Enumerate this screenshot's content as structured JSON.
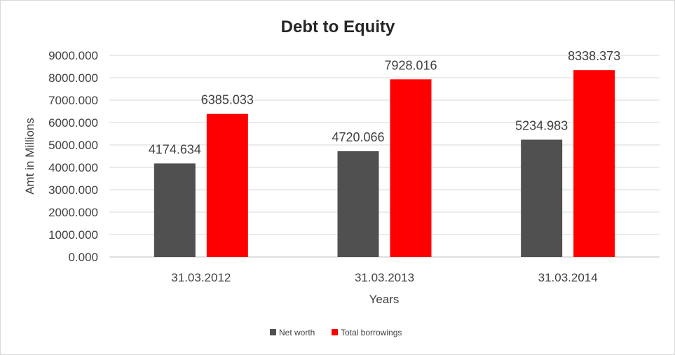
{
  "chart_data": {
    "type": "bar",
    "title": "Debt to Equity",
    "xlabel": "Years",
    "ylabel": "Amt in Millions",
    "categories": [
      "31.03.2012",
      "31.03.2013",
      "31.03.2014"
    ],
    "series": [
      {
        "name": "Net worth",
        "color": "#505050",
        "values": [
          4174.634,
          4720.066,
          5234.983
        ],
        "labels": [
          "4174.634",
          "4720.066",
          "5234.983"
        ]
      },
      {
        "name": "Total borrowings",
        "color": "#ff0000",
        "values": [
          6385.033,
          7928.016,
          8338.373
        ],
        "labels": [
          "6385.033",
          "7928.016",
          "8338.373"
        ]
      }
    ],
    "ylim": [
      0,
      9000
    ],
    "yticks": [
      0,
      1000,
      2000,
      3000,
      4000,
      5000,
      6000,
      7000,
      8000,
      9000
    ],
    "ytick_labels": [
      "0.000",
      "1000.000",
      "2000.000",
      "3000.000",
      "4000.000",
      "5000.000",
      "6000.000",
      "7000.000",
      "8000.000",
      "9000.000"
    ],
    "grid": true,
    "legend_position": "bottom"
  }
}
